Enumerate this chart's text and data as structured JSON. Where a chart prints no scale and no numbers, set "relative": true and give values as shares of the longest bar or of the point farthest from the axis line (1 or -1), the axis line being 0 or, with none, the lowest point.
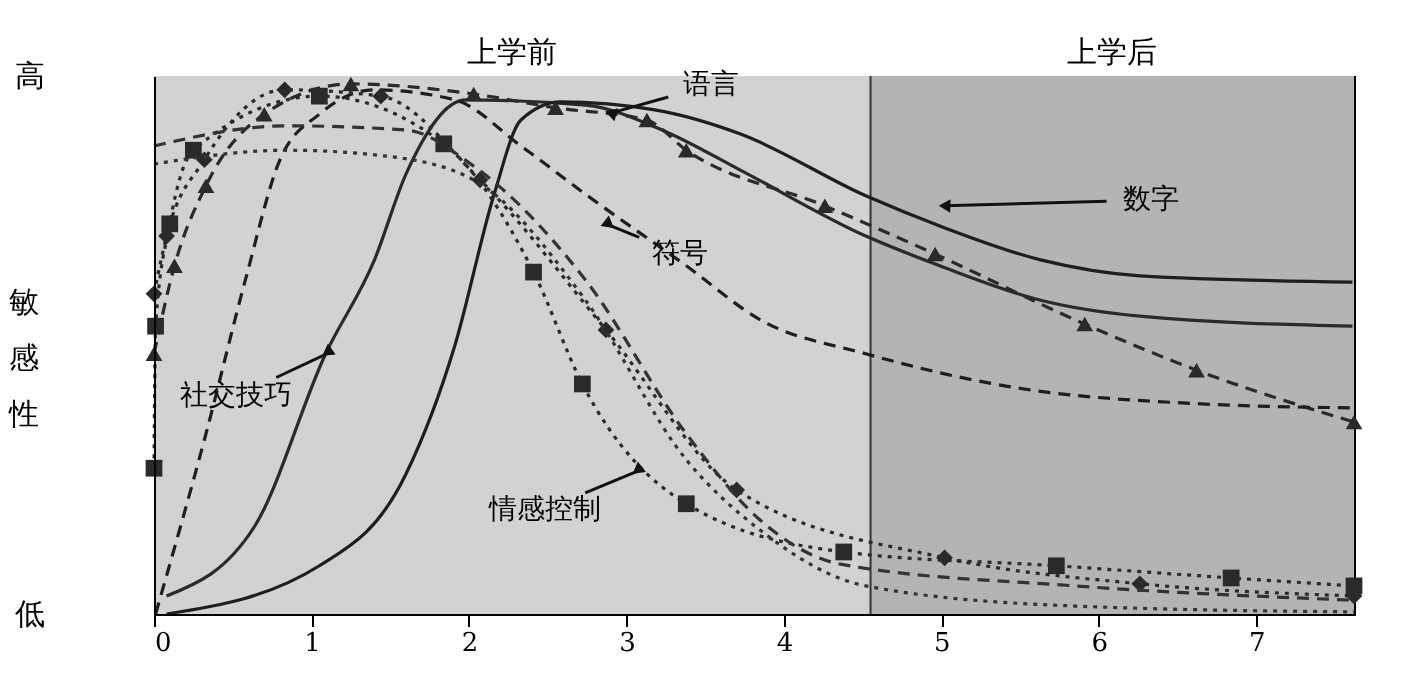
{
  "chart_data": {
    "type": "line",
    "relative": true,
    "ylabel": "敏感性",
    "xlim": [
      0,
      7.62
    ],
    "xticks": [
      0,
      1,
      2,
      3,
      4,
      5,
      6,
      7
    ],
    "grid": false,
    "series": [
      {
        "color": "#2a2a2a",
        "line_style": "solid",
        "marker": "none",
        "x": [
          0.08,
          0.64,
          1.09,
          1.4,
          1.6,
          1.98,
          2.74,
          3.25,
          3.72,
          4.52,
          4.99,
          5.63,
          6.26,
          7.61
        ],
        "values": [
          0.034,
          0.166,
          0.491,
          0.668,
          0.83,
          0.97,
          0.96,
          0.91,
          0.838,
          0.713,
          0.657,
          0.592,
          0.562,
          0.543
        ]
      },
      {
        "color": "#1e1e1e",
        "line_style": "solid",
        "marker": "none",
        "x": [
          0.08,
          1.05,
          1.6,
          1.91,
          2.16,
          2.33,
          2.58,
          3.18,
          3.72,
          4.52,
          4.99,
          5.63,
          6.26,
          7.61
        ],
        "values": [
          0.0,
          0.091,
          0.264,
          0.506,
          0.792,
          0.932,
          0.966,
          0.951,
          0.906,
          0.789,
          0.732,
          0.668,
          0.638,
          0.626
        ]
      },
      {
        "color": "#2a2a2a",
        "line_style": "dashed",
        "marker": "triangle",
        "x": [
          0,
          0.13,
          0.33,
          0.7,
          1.25,
          2.03,
          2.55,
          3.13,
          3.38,
          4.26,
          4.96,
          5.91,
          6.62,
          7.62
        ],
        "values": [
          0.491,
          0.657,
          0.808,
          0.943,
          1.0,
          0.981,
          0.955,
          0.932,
          0.875,
          0.77,
          0.679,
          0.547,
          0.46,
          0.362
        ]
      },
      {
        "color": "#1e1e1e",
        "line_style": "dashed",
        "marker": "none",
        "x": [
          0.01,
          0.33,
          0.58,
          0.8,
          1.05,
          1.4,
          1.91,
          2.33,
          2.74,
          3.38,
          3.85,
          4.52,
          5.41,
          6.68,
          7.61
        ],
        "values": [
          0.0,
          0.34,
          0.63,
          0.857,
          0.943,
          0.989,
          0.97,
          0.883,
          0.792,
          0.657,
          0.555,
          0.491,
          0.43,
          0.396,
          0.389
        ]
      },
      {
        "color": "#2a2a2a",
        "line_style": "dotted",
        "marker": "diamond",
        "x": [
          0,
          0.08,
          0.32,
          0.83,
          1.44,
          2.07,
          2.87,
          3.7,
          5.02,
          6.26,
          7.62
        ],
        "values": [
          0.604,
          0.713,
          0.857,
          0.989,
          0.977,
          0.819,
          0.536,
          0.234,
          0.106,
          0.057,
          0.034
        ]
      },
      {
        "color": "#2a2a2a",
        "line_style": "dotted",
        "marker": "square",
        "x": [
          0,
          0.01,
          0.1,
          0.25,
          1.05,
          1.84,
          2.41,
          2.72,
          3.38,
          4.38,
          5.73,
          6.84,
          7.62
        ],
        "values": [
          0.275,
          0.543,
          0.736,
          0.875,
          0.977,
          0.887,
          0.645,
          0.434,
          0.208,
          0.117,
          0.091,
          0.068,
          0.053
        ]
      },
      {
        "color": "#333333",
        "line_style": "dashed",
        "marker": "none",
        "x": [
          0,
          0.84,
          1.6,
          2.03,
          2.74,
          3.38,
          3.85,
          4.36,
          5.85,
          7.62
        ],
        "values": [
          0.883,
          0.921,
          0.913,
          0.845,
          0.63,
          0.34,
          0.177,
          0.094,
          0.053,
          0.026
        ]
      },
      {
        "color": "#333333",
        "line_style": "dotted",
        "marker": "none",
        "x": [
          0,
          0.84,
          1.47,
          2.03,
          2.74,
          3.38,
          3.85,
          4.52,
          5.85,
          7.62
        ],
        "values": [
          0.849,
          0.875,
          0.864,
          0.819,
          0.592,
          0.291,
          0.158,
          0.053,
          0.015,
          0.004
        ]
      }
    ],
    "bands": [
      {
        "axis": "x",
        "from": 0,
        "to": 4.55,
        "label": "上学前",
        "color": "#d2d2d2"
      },
      {
        "axis": "x",
        "from": 4.55,
        "to": 7.62,
        "label": "上学后",
        "color": "#b4b4b4"
      }
    ],
    "ref_lines": [
      {
        "axis": "x",
        "value": 4.55,
        "color": "#333333"
      }
    ],
    "annotations": [
      "高",
      "低",
      {
        "text": "语言",
        "x": 2.9,
        "y": 0.945
      },
      {
        "text": "符号",
        "x": 2.87,
        "y": 0.736
      },
      {
        "text": "数字",
        "x": 5.02,
        "y": 0.77
      },
      {
        "text": "社交技巧",
        "x": 1.12,
        "y": 0.494
      },
      {
        "text": "情感控制",
        "x": 3.09,
        "y": 0.272
      }
    ]
  }
}
